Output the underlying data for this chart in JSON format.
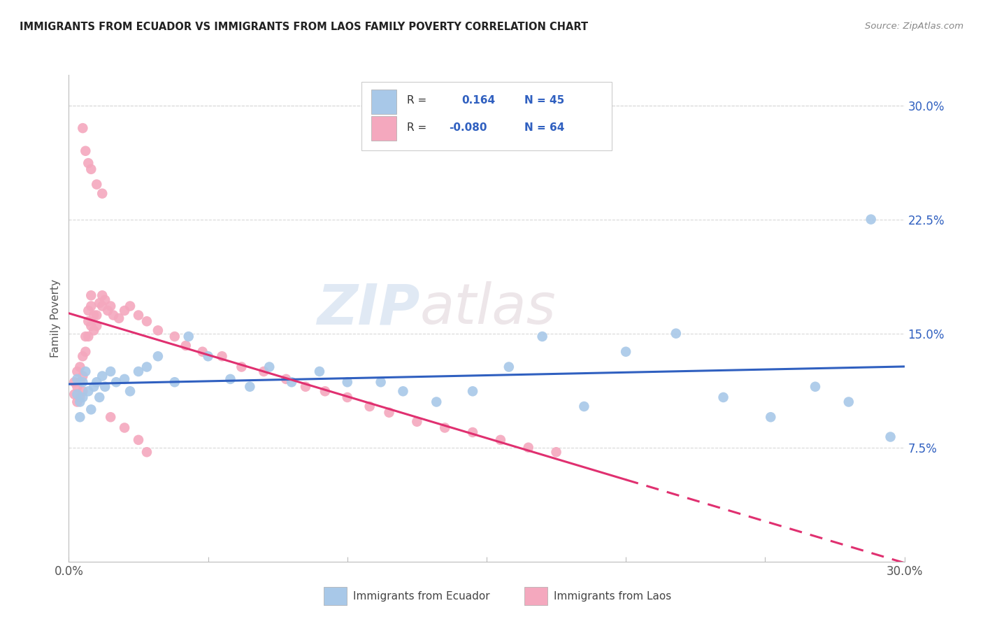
{
  "title": "IMMIGRANTS FROM ECUADOR VS IMMIGRANTS FROM LAOS FAMILY POVERTY CORRELATION CHART",
  "source": "Source: ZipAtlas.com",
  "ylabel": "Family Poverty",
  "ytick_values": [
    0.075,
    0.15,
    0.225,
    0.3
  ],
  "ytick_labels": [
    "7.5%",
    "15.0%",
    "22.5%",
    "30.0%"
  ],
  "xlim": [
    0.0,
    0.3
  ],
  "ylim": [
    0.0,
    0.32
  ],
  "r_ecuador": 0.164,
  "n_ecuador": 45,
  "r_laos": -0.08,
  "n_laos": 64,
  "color_ecuador": "#a8c8e8",
  "color_laos": "#f4a8be",
  "line_color_ecuador": "#3060c0",
  "line_color_laos": "#e03070",
  "watermark_zip": "ZIP",
  "watermark_atlas": "atlas",
  "ecuador_x": [
    0.003,
    0.003,
    0.004,
    0.004,
    0.005,
    0.005,
    0.006,
    0.007,
    0.008,
    0.009,
    0.01,
    0.011,
    0.012,
    0.013,
    0.015,
    0.017,
    0.02,
    0.022,
    0.025,
    0.028,
    0.032,
    0.038,
    0.043,
    0.05,
    0.058,
    0.065,
    0.072,
    0.08,
    0.09,
    0.1,
    0.112,
    0.12,
    0.132,
    0.145,
    0.158,
    0.17,
    0.185,
    0.2,
    0.218,
    0.235,
    0.252,
    0.268,
    0.28,
    0.288,
    0.295
  ],
  "ecuador_y": [
    0.12,
    0.11,
    0.105,
    0.095,
    0.118,
    0.108,
    0.125,
    0.112,
    0.1,
    0.115,
    0.118,
    0.108,
    0.122,
    0.115,
    0.125,
    0.118,
    0.12,
    0.112,
    0.125,
    0.128,
    0.135,
    0.118,
    0.148,
    0.135,
    0.12,
    0.115,
    0.128,
    0.118,
    0.125,
    0.118,
    0.118,
    0.112,
    0.105,
    0.112,
    0.128,
    0.148,
    0.102,
    0.138,
    0.15,
    0.108,
    0.095,
    0.115,
    0.105,
    0.225,
    0.082
  ],
  "laos_x": [
    0.002,
    0.002,
    0.003,
    0.003,
    0.003,
    0.004,
    0.004,
    0.004,
    0.005,
    0.005,
    0.005,
    0.006,
    0.006,
    0.007,
    0.007,
    0.007,
    0.008,
    0.008,
    0.008,
    0.009,
    0.009,
    0.01,
    0.01,
    0.011,
    0.012,
    0.012,
    0.013,
    0.014,
    0.015,
    0.016,
    0.018,
    0.02,
    0.022,
    0.025,
    0.028,
    0.032,
    0.038,
    0.042,
    0.048,
    0.055,
    0.062,
    0.07,
    0.078,
    0.085,
    0.092,
    0.1,
    0.108,
    0.115,
    0.125,
    0.135,
    0.145,
    0.155,
    0.165,
    0.175,
    0.005,
    0.006,
    0.007,
    0.008,
    0.01,
    0.012,
    0.015,
    0.02,
    0.025,
    0.028
  ],
  "laos_y": [
    0.118,
    0.11,
    0.125,
    0.115,
    0.105,
    0.128,
    0.118,
    0.108,
    0.135,
    0.122,
    0.112,
    0.148,
    0.138,
    0.158,
    0.148,
    0.165,
    0.155,
    0.168,
    0.175,
    0.162,
    0.152,
    0.162,
    0.155,
    0.17,
    0.168,
    0.175,
    0.172,
    0.165,
    0.168,
    0.162,
    0.16,
    0.165,
    0.168,
    0.162,
    0.158,
    0.152,
    0.148,
    0.142,
    0.138,
    0.135,
    0.128,
    0.125,
    0.12,
    0.115,
    0.112,
    0.108,
    0.102,
    0.098,
    0.092,
    0.088,
    0.085,
    0.08,
    0.075,
    0.072,
    0.285,
    0.27,
    0.262,
    0.258,
    0.248,
    0.242,
    0.095,
    0.088,
    0.08,
    0.072
  ]
}
